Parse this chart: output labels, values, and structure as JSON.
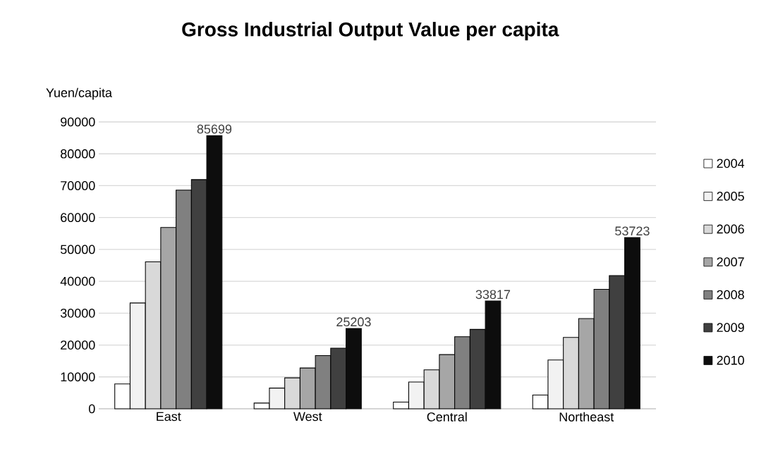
{
  "chart_data": {
    "type": "bar",
    "title": "Gross Industrial Output Value per capita",
    "ylabel": "Yuen/capita",
    "categories": [
      "East",
      "West",
      "Central",
      "Northeast"
    ],
    "series": [
      {
        "name": "2004",
        "color": "#ffffff",
        "values": [
          7800,
          1800,
          2100,
          4300
        ]
      },
      {
        "name": "2005",
        "color": "#f2f2f2",
        "values": [
          33200,
          6500,
          8400,
          15300
        ]
      },
      {
        "name": "2006",
        "color": "#d9d9d9",
        "values": [
          46100,
          9700,
          12200,
          22400
        ]
      },
      {
        "name": "2007",
        "color": "#a6a6a6",
        "values": [
          56900,
          12800,
          17000,
          28300
        ]
      },
      {
        "name": "2008",
        "color": "#808080",
        "values": [
          68600,
          16700,
          22600,
          37500
        ]
      },
      {
        "name": "2009",
        "color": "#404040",
        "values": [
          71900,
          19000,
          24900,
          41800
        ]
      },
      {
        "name": "2010",
        "color": "#0d0d0d",
        "values": [
          85699,
          25203,
          33817,
          53723
        ],
        "value_labels": [
          "85699",
          "25203",
          "33817",
          "53723"
        ]
      }
    ],
    "ylim": [
      0,
      90000
    ],
    "yticks": [
      0,
      10000,
      20000,
      30000,
      40000,
      50000,
      60000,
      70000,
      80000,
      90000
    ],
    "grid": "y",
    "legend": "right"
  }
}
